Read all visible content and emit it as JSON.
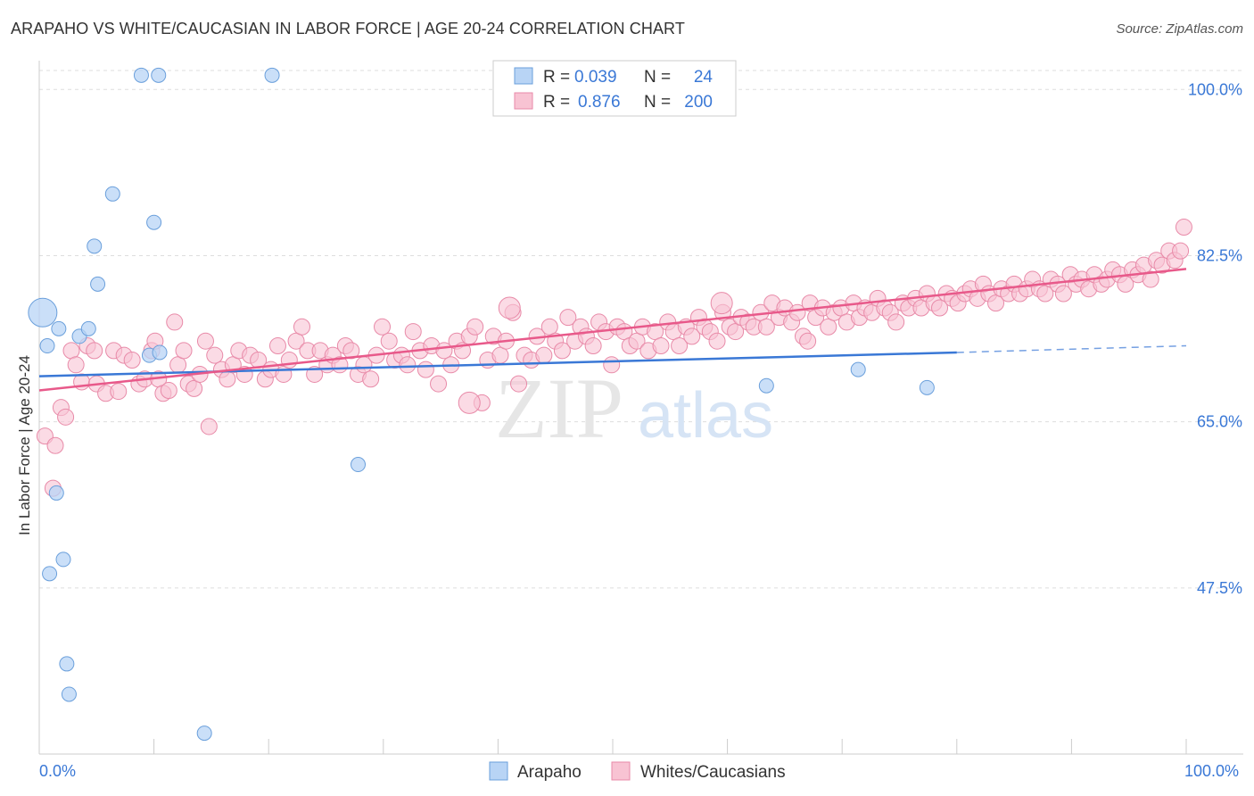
{
  "title": "ARAPAHO VS WHITE/CAUCASIAN IN LABOR FORCE | AGE 20-24 CORRELATION CHART",
  "source": "Source: ZipAtlas.com",
  "colors": {
    "arapaho_fill": "#b8d4f5",
    "arapaho_stroke": "#6a9fdb",
    "arapaho_line": "#3a78d6",
    "white_fill": "#f8c3d3",
    "white_stroke": "#e88aa8",
    "white_line": "#e8598a",
    "tick_label": "#3a78d6",
    "grid": "#dddddd"
  },
  "legend": {
    "rows": [
      {
        "r_label": "R =",
        "r_value": "0.039",
        "n_label": "N =",
        "n_value": "24"
      },
      {
        "r_label": "R =",
        "r_value": "0.876",
        "n_label": "N =",
        "n_value": "200"
      }
    ],
    "bottom": [
      "Arapaho",
      "Whites/Caucasians"
    ]
  },
  "watermark": {
    "zip": "ZIP",
    "atlas": "atlas"
  },
  "chart_data": {
    "type": "scatter",
    "title": "ARAPAHO VS WHITE/CAUCASIAN IN LABOR FORCE | AGE 20-24 CORRELATION CHART",
    "xlabel": "",
    "ylabel": "In Labor Force | Age 20-24",
    "xlim": [
      0,
      100
    ],
    "ylim": [
      30,
      102
    ],
    "x_tick_labels": [
      "0.0%",
      "100.0%"
    ],
    "y_ticks": [
      47.5,
      65.0,
      82.5,
      100.0
    ],
    "y_tick_labels": [
      "47.5%",
      "65.0%",
      "82.5%",
      "100.0%"
    ],
    "grid": true,
    "legend_position": "top-center",
    "series": [
      {
        "name": "Arapaho",
        "r": 0.039,
        "n": 24,
        "trend": {
          "x0": 0,
          "y0": 69.8,
          "x1": 80,
          "y1": 72.3,
          "dashed_to_x": 100,
          "dashed_y1": 73.0
        },
        "points": [
          [
            0.3,
            76.5,
            16
          ],
          [
            0.7,
            73.0,
            8
          ],
          [
            1.5,
            57.5,
            8
          ],
          [
            0.9,
            49.0,
            8
          ],
          [
            2.1,
            50.5,
            8
          ],
          [
            2.4,
            39.5,
            8
          ],
          [
            2.6,
            36.3,
            8
          ],
          [
            1.7,
            74.8,
            8
          ],
          [
            3.5,
            74.0,
            8
          ],
          [
            4.3,
            74.8,
            8
          ],
          [
            4.8,
            83.5,
            8
          ],
          [
            5.1,
            79.5,
            8
          ],
          [
            6.4,
            89.0,
            8
          ],
          [
            8.9,
            101.5,
            8
          ],
          [
            10.4,
            101.5,
            8
          ],
          [
            10.0,
            86.0,
            8
          ],
          [
            9.6,
            72.0,
            8
          ],
          [
            10.5,
            72.3,
            8
          ],
          [
            14.4,
            32.2,
            8
          ],
          [
            20.3,
            101.5,
            8
          ],
          [
            27.8,
            60.5,
            8
          ],
          [
            63.4,
            68.8,
            8
          ],
          [
            71.4,
            70.5,
            8
          ],
          [
            77.4,
            68.6,
            8
          ]
        ]
      },
      {
        "name": "Whites/Caucasians",
        "r": 0.876,
        "n": 200,
        "trend": {
          "x0": 0,
          "y0": 68.3,
          "x1": 100,
          "y1": 81.1
        },
        "points": [
          [
            0.5,
            63.5
          ],
          [
            1.2,
            58.0
          ],
          [
            1.4,
            62.5
          ],
          [
            1.9,
            66.5
          ],
          [
            2.3,
            65.5
          ],
          [
            2.8,
            72.5
          ],
          [
            3.2,
            71.0
          ],
          [
            3.7,
            69.2
          ],
          [
            4.2,
            73.0
          ],
          [
            4.8,
            72.5
          ],
          [
            5.0,
            69.0
          ],
          [
            5.8,
            68.0
          ],
          [
            6.5,
            72.5
          ],
          [
            6.9,
            68.2
          ],
          [
            7.4,
            72.0
          ],
          [
            8.1,
            71.5
          ],
          [
            8.7,
            69.0
          ],
          [
            9.2,
            69.5
          ],
          [
            9.8,
            72.5
          ],
          [
            10.1,
            73.5
          ],
          [
            10.4,
            69.5
          ],
          [
            10.8,
            68.0
          ],
          [
            11.3,
            68.3
          ],
          [
            11.8,
            75.5
          ],
          [
            12.1,
            71.0
          ],
          [
            12.6,
            72.5
          ],
          [
            13.0,
            69.0
          ],
          [
            13.5,
            68.5
          ],
          [
            14.0,
            70.0
          ],
          [
            14.5,
            73.5
          ],
          [
            14.8,
            64.5
          ],
          [
            15.3,
            72.0
          ],
          [
            15.9,
            70.5
          ],
          [
            16.4,
            69.5
          ],
          [
            16.9,
            71.0
          ],
          [
            17.4,
            72.5
          ],
          [
            17.9,
            70.0
          ],
          [
            18.4,
            72.0
          ],
          [
            19.1,
            71.5
          ],
          [
            19.7,
            69.5
          ],
          [
            20.2,
            70.5
          ],
          [
            20.8,
            73.0
          ],
          [
            21.3,
            70.0
          ],
          [
            21.8,
            71.5
          ],
          [
            22.4,
            73.5
          ],
          [
            22.9,
            75.0
          ],
          [
            23.4,
            72.5
          ],
          [
            24.0,
            70.0
          ],
          [
            24.5,
            72.5
          ],
          [
            25.1,
            71.0
          ],
          [
            25.6,
            72.0
          ],
          [
            26.2,
            71.0
          ],
          [
            26.7,
            73.0
          ],
          [
            27.2,
            72.5
          ],
          [
            27.8,
            70.0
          ],
          [
            28.3,
            71.0
          ],
          [
            28.9,
            69.5
          ],
          [
            29.4,
            72.0
          ],
          [
            29.9,
            75.0
          ],
          [
            30.5,
            73.5
          ],
          [
            31.0,
            71.5
          ],
          [
            31.6,
            72.0
          ],
          [
            32.1,
            71.0
          ],
          [
            32.6,
            74.5
          ],
          [
            33.2,
            72.5
          ],
          [
            33.7,
            70.5
          ],
          [
            34.2,
            73.0
          ],
          [
            34.8,
            69.0
          ],
          [
            35.3,
            72.5
          ],
          [
            35.9,
            71.0
          ],
          [
            36.4,
            73.5
          ],
          [
            36.9,
            72.5
          ],
          [
            37.5,
            74.0
          ],
          [
            38.0,
            75.0
          ],
          [
            38.6,
            67.0
          ],
          [
            39.1,
            71.5
          ],
          [
            39.6,
            74.0
          ],
          [
            40.2,
            72.0
          ],
          [
            40.7,
            73.5
          ],
          [
            41.3,
            76.5
          ],
          [
            41.8,
            69.0
          ],
          [
            42.3,
            72.0
          ],
          [
            42.9,
            71.5
          ],
          [
            43.4,
            74.0
          ],
          [
            44.0,
            72.0
          ],
          [
            44.5,
            75.0
          ],
          [
            45.0,
            73.5
          ],
          [
            45.6,
            72.5
          ],
          [
            46.1,
            76.0
          ],
          [
            46.7,
            73.5
          ],
          [
            47.2,
            75.0
          ],
          [
            47.7,
            74.0
          ],
          [
            48.3,
            73.0
          ],
          [
            48.8,
            75.5
          ],
          [
            49.4,
            74.5
          ],
          [
            49.9,
            71.0
          ],
          [
            50.4,
            75.0
          ],
          [
            51.0,
            74.5
          ],
          [
            51.5,
            73.0
          ],
          [
            52.1,
            73.5
          ],
          [
            52.6,
            75.0
          ],
          [
            53.1,
            72.5
          ],
          [
            53.7,
            74.5
          ],
          [
            54.2,
            73.0
          ],
          [
            54.8,
            75.5
          ],
          [
            55.3,
            74.5
          ],
          [
            55.8,
            73.0
          ],
          [
            56.4,
            75.0
          ],
          [
            56.9,
            74.0
          ],
          [
            57.5,
            76.0
          ],
          [
            58.0,
            75.0
          ],
          [
            58.5,
            74.5
          ],
          [
            59.1,
            73.5
          ],
          [
            59.6,
            76.5
          ],
          [
            60.2,
            75.0
          ],
          [
            60.7,
            74.5
          ],
          [
            61.2,
            76.0
          ],
          [
            61.8,
            75.5
          ],
          [
            62.3,
            75.0
          ],
          [
            62.9,
            76.5
          ],
          [
            63.4,
            75.0
          ],
          [
            63.9,
            77.5
          ],
          [
            64.5,
            76.0
          ],
          [
            65.0,
            77.0
          ],
          [
            65.6,
            75.5
          ],
          [
            66.1,
            76.5
          ],
          [
            66.6,
            74.0
          ],
          [
            67.2,
            77.5
          ],
          [
            67.7,
            76.0
          ],
          [
            68.3,
            77.0
          ],
          [
            68.8,
            75.0
          ],
          [
            69.3,
            76.5
          ],
          [
            69.9,
            77.0
          ],
          [
            70.4,
            75.5
          ],
          [
            71.0,
            77.5
          ],
          [
            71.5,
            76.0
          ],
          [
            72.0,
            77.0
          ],
          [
            72.6,
            76.5
          ],
          [
            73.1,
            78.0
          ],
          [
            73.7,
            77.0
          ],
          [
            74.2,
            76.5
          ],
          [
            74.7,
            75.5
          ],
          [
            75.3,
            77.5
          ],
          [
            75.8,
            77.0
          ],
          [
            76.4,
            78.0
          ],
          [
            76.9,
            77.0
          ],
          [
            77.4,
            78.5
          ],
          [
            78.0,
            77.5
          ],
          [
            78.5,
            77.0
          ],
          [
            79.1,
            78.5
          ],
          [
            79.6,
            78.0
          ],
          [
            80.1,
            77.5
          ],
          [
            80.7,
            78.5
          ],
          [
            81.2,
            79.0
          ],
          [
            81.8,
            78.0
          ],
          [
            82.3,
            79.5
          ],
          [
            82.8,
            78.5
          ],
          [
            83.4,
            77.5
          ],
          [
            83.9,
            79.0
          ],
          [
            84.5,
            78.5
          ],
          [
            85.0,
            79.5
          ],
          [
            85.5,
            78.5
          ],
          [
            86.1,
            79.0
          ],
          [
            86.6,
            80.0
          ],
          [
            87.2,
            79.0
          ],
          [
            87.7,
            78.5
          ],
          [
            88.2,
            80.0
          ],
          [
            88.8,
            79.5
          ],
          [
            89.3,
            78.5
          ],
          [
            89.9,
            80.5
          ],
          [
            90.4,
            79.5
          ],
          [
            90.9,
            80.0
          ],
          [
            91.5,
            79.0
          ],
          [
            92.0,
            80.5
          ],
          [
            92.6,
            79.5
          ],
          [
            93.1,
            80.0
          ],
          [
            93.6,
            81.0
          ],
          [
            94.2,
            80.5
          ],
          [
            94.7,
            79.5
          ],
          [
            95.3,
            81.0
          ],
          [
            95.8,
            80.5
          ],
          [
            96.3,
            81.5
          ],
          [
            96.9,
            80.0
          ],
          [
            97.4,
            82.0
          ],
          [
            97.9,
            81.5
          ],
          [
            98.5,
            83.0
          ],
          [
            99.0,
            82.0
          ],
          [
            99.5,
            83.0
          ],
          [
            99.8,
            85.5
          ],
          [
            67.0,
            73.5
          ]
        ],
        "big_points": [
          [
            37.5,
            67.0
          ],
          [
            41.0,
            77.0
          ],
          [
            59.5,
            77.5
          ]
        ]
      }
    ]
  }
}
